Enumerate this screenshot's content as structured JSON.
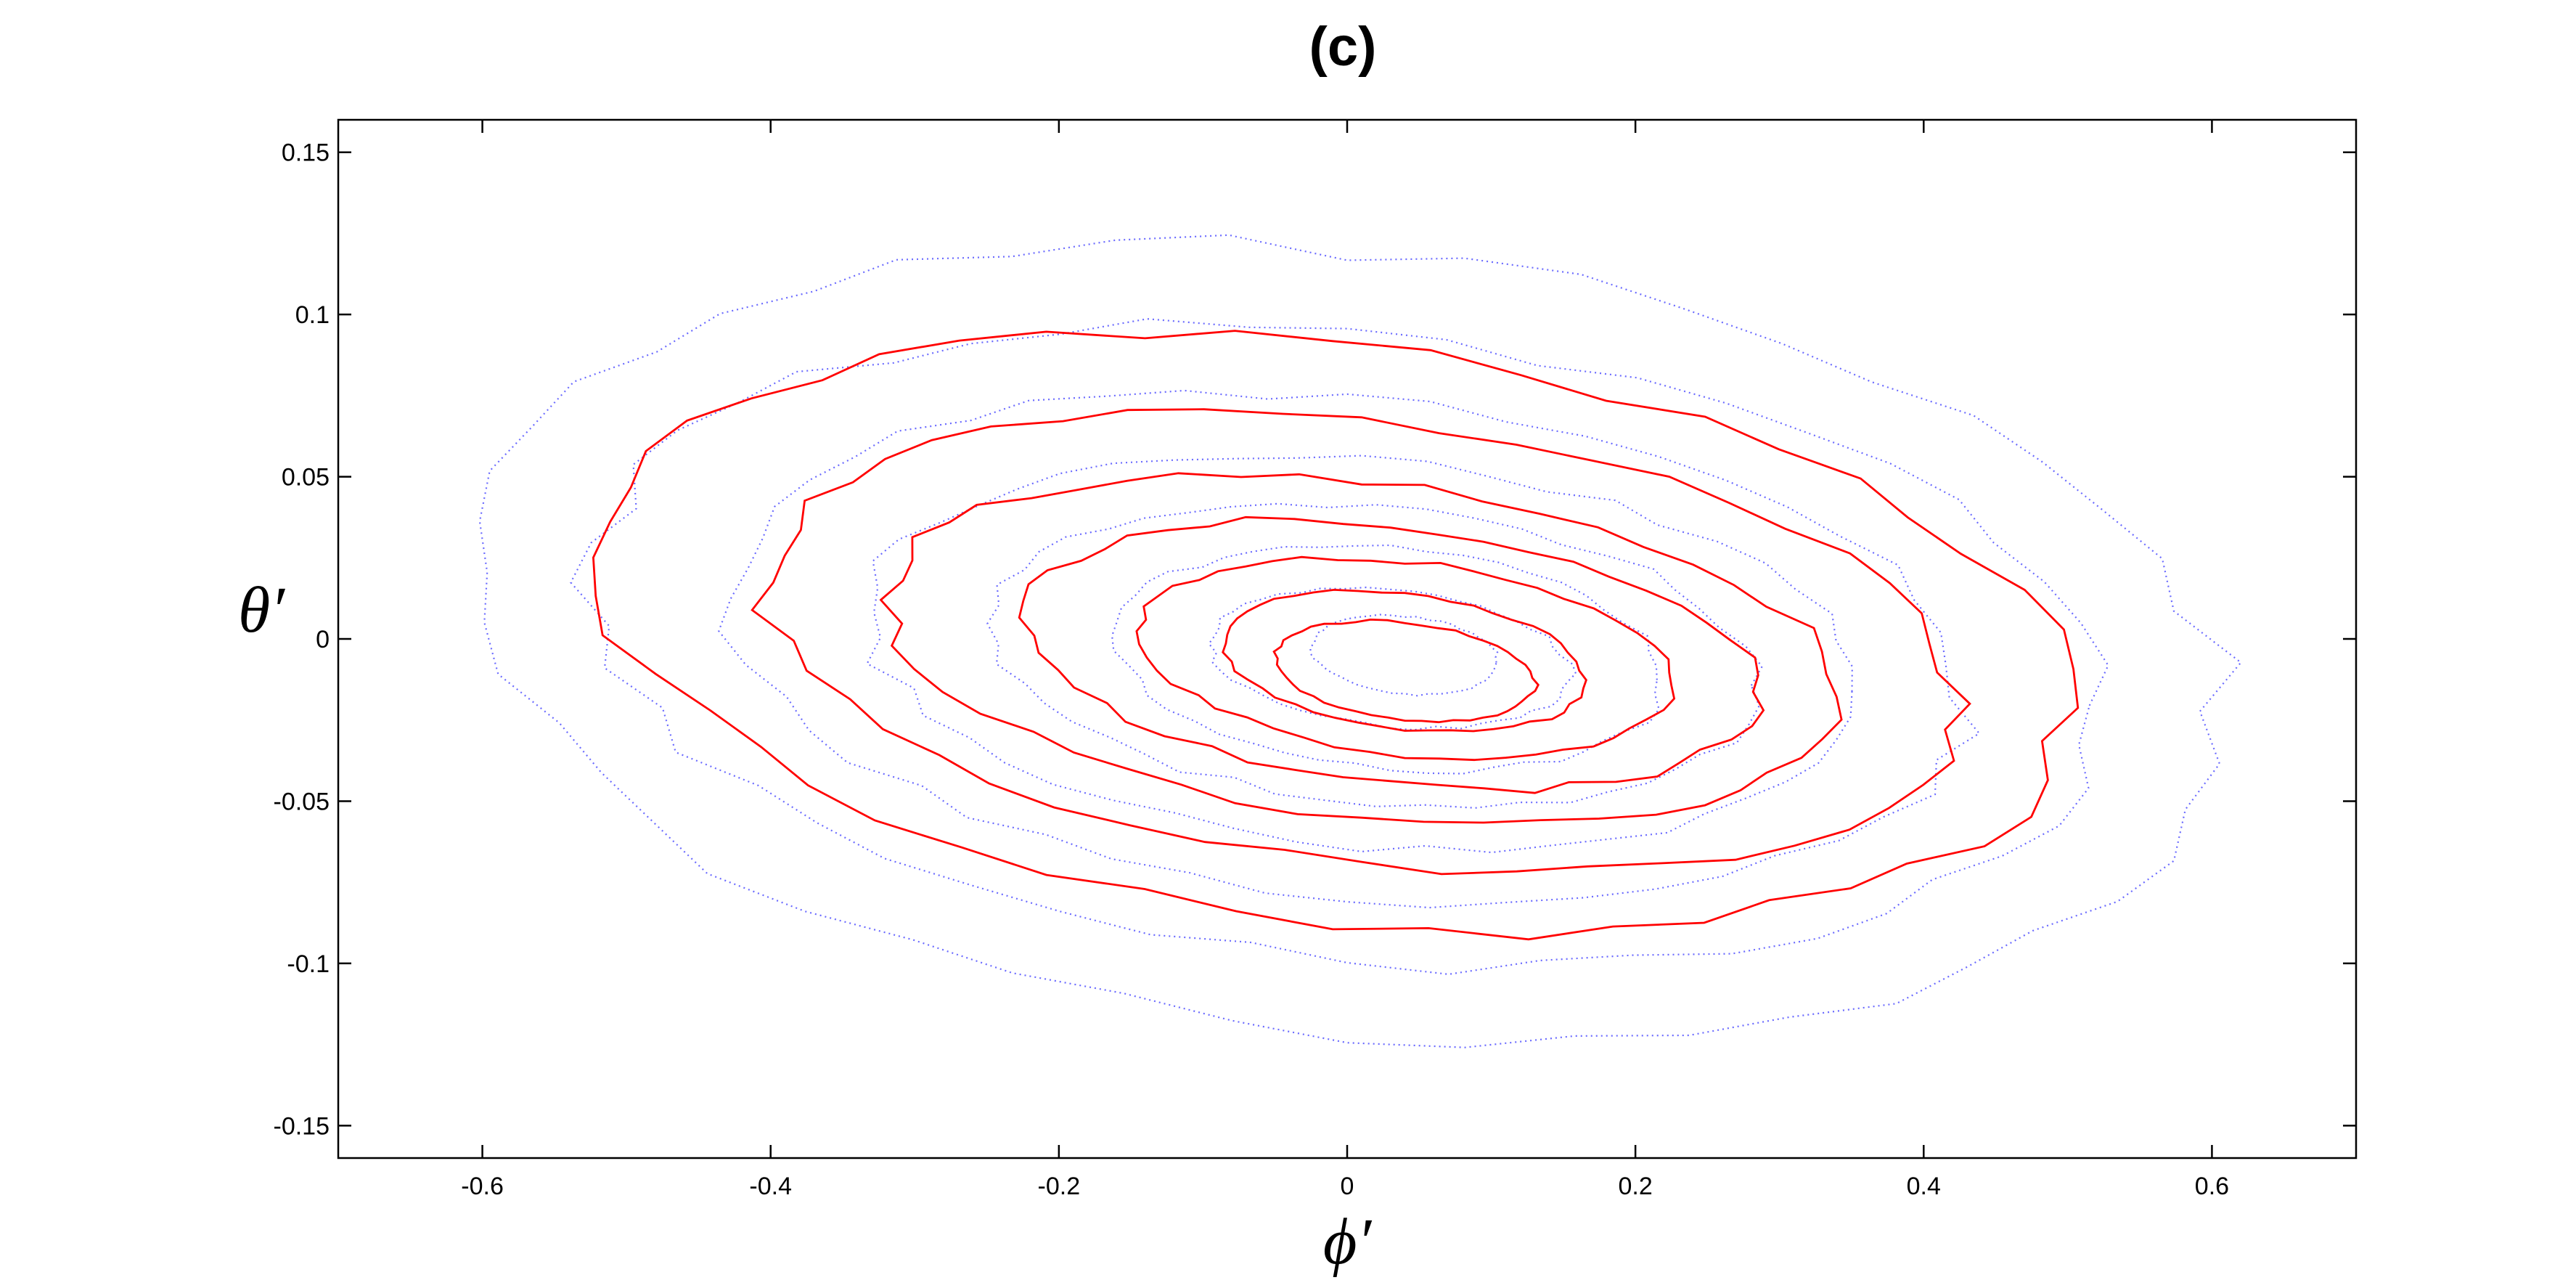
{
  "chart_data": {
    "type": "line",
    "title": "(c)",
    "xlabel": "ϕ′",
    "ylabel": "θ′",
    "xlim": [
      -0.7,
      0.7
    ],
    "ylim": [
      -0.16,
      0.16
    ],
    "xticks": [
      -0.6,
      -0.4,
      -0.2,
      0,
      0.2,
      0.4,
      0.6
    ],
    "xtick_labels": [
      "-0.6",
      "-0.4",
      "-0.2",
      "0",
      "0.2",
      "0.4",
      "0.6"
    ],
    "yticks": [
      -0.15,
      -0.1,
      -0.05,
      0,
      0.05,
      0.1,
      0.15
    ],
    "ytick_labels": [
      "-0.15",
      "-0.1",
      "-0.05",
      "0",
      "0.05",
      "0.1",
      "0.15"
    ],
    "grid": false,
    "legend": "none",
    "series": [
      {
        "style": "dotted",
        "color": "#6b6bff",
        "contours": [
          {
            "cx": 0.0,
            "cy": -0.001,
            "rx": 0.61,
            "ry": 0.12,
            "tilt": -0.04
          },
          {
            "cx": 0.0,
            "cy": -0.002,
            "rx": 0.525,
            "ry": 0.097,
            "tilt": -0.04
          },
          {
            "cx": 0.0,
            "cy": -0.003,
            "rx": 0.43,
            "ry": 0.077,
            "tilt": -0.04
          },
          {
            "cx": 0.01,
            "cy": -0.004,
            "rx": 0.345,
            "ry": 0.06,
            "tilt": -0.04
          },
          {
            "cx": 0.02,
            "cy": -0.005,
            "rx": 0.265,
            "ry": 0.046,
            "tilt": -0.04
          },
          {
            "cx": 0.03,
            "cy": -0.006,
            "rx": 0.19,
            "ry": 0.034,
            "tilt": -0.04
          },
          {
            "cx": 0.03,
            "cy": -0.006,
            "rx": 0.125,
            "ry": 0.021,
            "tilt": -0.04
          },
          {
            "cx": 0.04,
            "cy": -0.005,
            "rx": 0.065,
            "ry": 0.012,
            "tilt": -0.04
          }
        ]
      },
      {
        "style": "solid",
        "color": "#ff0000",
        "contours": [
          {
            "cx": -0.01,
            "cy": 0.002,
            "rx": 0.51,
            "ry": 0.089,
            "tilt": -0.05
          },
          {
            "cx": 0.01,
            "cy": -0.001,
            "rx": 0.415,
            "ry": 0.068,
            "tilt": -0.05
          },
          {
            "cx": 0.01,
            "cy": -0.003,
            "rx": 0.33,
            "ry": 0.052,
            "tilt": -0.05
          },
          {
            "cx": 0.03,
            "cy": -0.005,
            "rx": 0.255,
            "ry": 0.04,
            "tilt": -0.05
          },
          {
            "cx": 0.04,
            "cy": -0.006,
            "rx": 0.185,
            "ry": 0.03,
            "tilt": -0.05
          },
          {
            "cx": 0.04,
            "cy": -0.007,
            "rx": 0.125,
            "ry": 0.021,
            "tilt": -0.05
          },
          {
            "cx": 0.04,
            "cy": -0.01,
            "rx": 0.09,
            "ry": 0.015,
            "tilt": -0.05
          }
        ]
      }
    ]
  }
}
